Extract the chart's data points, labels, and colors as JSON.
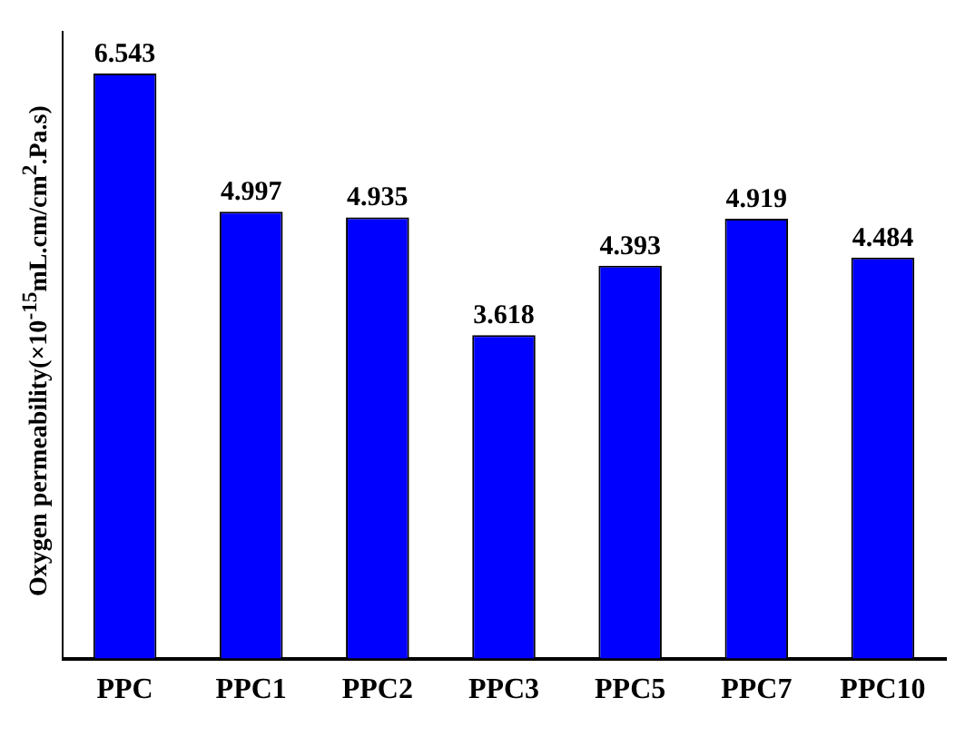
{
  "chart_data": {
    "type": "bar",
    "ylabel": "Oxygen permeability(×10$^{-15}$mL.cm/cm$^{2}$.Pa.s)",
    "categories": [
      "PPC",
      "PPC1",
      "PPC2",
      "PPC3",
      "PPC5",
      "PPC7",
      "PPC10"
    ],
    "values": [
      6.543,
      4.997,
      4.935,
      3.618,
      4.393,
      4.919,
      4.484
    ],
    "color": "#0000ff",
    "data_labels": true,
    "grid": false,
    "legend": false
  }
}
